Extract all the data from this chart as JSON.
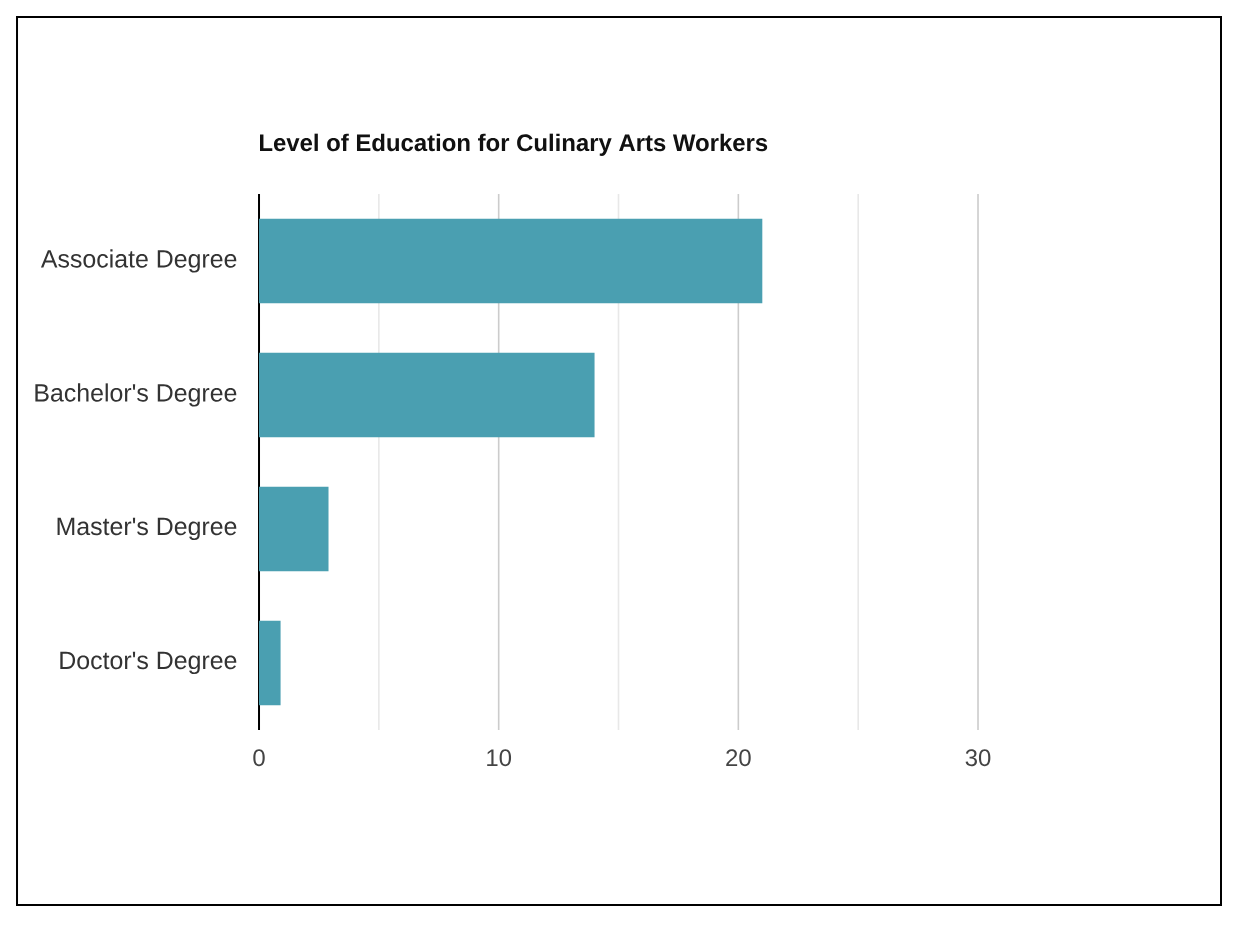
{
  "chart_data": {
    "type": "bar",
    "orientation": "horizontal",
    "title": "Level of Education for Culinary Arts Workers",
    "categories": [
      "Associate Degree",
      "Bachelor's Degree",
      "Master's Degree",
      "Doctor's Degree"
    ],
    "values": [
      21,
      14,
      2.9,
      0.9
    ],
    "color": "#4a9fb1",
    "xlim": [
      0,
      30
    ],
    "xticks": [
      0,
      {
        "value": 5,
        "label": null
      },
      10,
      {
        "value": 15,
        "label": null
      },
      20,
      {
        "value": 25,
        "label": null
      },
      30
    ],
    "grid": "x"
  }
}
